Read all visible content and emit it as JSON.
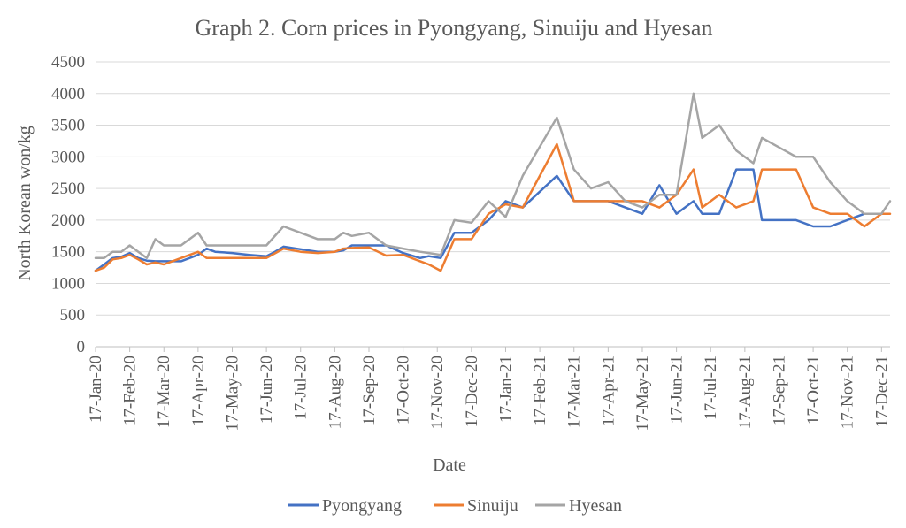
{
  "chart_data": {
    "type": "line",
    "title": "Graph 2. Corn prices in Pyongyang, Sinuiju and Hyesan",
    "xlabel": "Date",
    "ylabel": "North Korean won/kg",
    "ylim": [
      0,
      4500
    ],
    "yticks": [
      "0",
      "500",
      "1000",
      "1500",
      "2000",
      "2500",
      "3000",
      "3500",
      "4000",
      "4500"
    ],
    "grid": "horizontal",
    "legend": "bottom",
    "x": [
      "17-Jan-20",
      "17-Feb-20",
      "17-Mar-20",
      "17-Apr-20",
      "17-May-20",
      "17-Jun-20",
      "17-Jul-20",
      "17-Aug-20",
      "17-Sep-20",
      "17-Oct-20",
      "17-Nov-20",
      "17-Dec-20",
      "17-Jan-21",
      "17-Feb-21",
      "17-Mar-21",
      "17-Apr-21",
      "17-May-21",
      "17-Jun-21",
      "17-Jul-21",
      "17-Aug-21",
      "17-Sep-21",
      "17-Oct-21",
      "17-Nov-21",
      "17-Dec-21"
    ],
    "series": [
      {
        "name": "Pyongyang",
        "color": "#4472c4",
        "points": [
          [
            0,
            1200
          ],
          [
            0.25,
            1300
          ],
          [
            0.5,
            1400
          ],
          [
            0.75,
            1420
          ],
          [
            1,
            1480
          ],
          [
            1.25,
            1400
          ],
          [
            1.5,
            1360
          ],
          [
            1.75,
            1350
          ],
          [
            2,
            1350
          ],
          [
            2.25,
            1350
          ],
          [
            2.5,
            1350
          ],
          [
            3,
            1450
          ],
          [
            3.25,
            1550
          ],
          [
            3.5,
            1500
          ],
          [
            4,
            1480
          ],
          [
            4.5,
            1450
          ],
          [
            5,
            1430
          ],
          [
            5.25,
            1500
          ],
          [
            5.5,
            1580
          ],
          [
            6,
            1540
          ],
          [
            6.5,
            1500
          ],
          [
            7,
            1500
          ],
          [
            7.25,
            1520
          ],
          [
            7.5,
            1600
          ],
          [
            8,
            1600
          ],
          [
            8.5,
            1600
          ],
          [
            9,
            1480
          ],
          [
            9.5,
            1400
          ],
          [
            9.75,
            1430
          ],
          [
            10.1,
            1400
          ],
          [
            10.5,
            1800
          ],
          [
            11,
            1800
          ],
          [
            11.5,
            2000
          ],
          [
            12,
            2300
          ],
          [
            12.5,
            2200
          ],
          [
            13.5,
            2700
          ],
          [
            14,
            2300
          ],
          [
            15,
            2300
          ],
          [
            16,
            2100
          ],
          [
            16.5,
            2550
          ],
          [
            17,
            2100
          ],
          [
            17.5,
            2300
          ],
          [
            17.75,
            2100
          ],
          [
            18.25,
            2100
          ],
          [
            18.75,
            2800
          ],
          [
            19.25,
            2800
          ],
          [
            19.5,
            2000
          ],
          [
            20.5,
            2000
          ],
          [
            21,
            1900
          ],
          [
            21.5,
            1900
          ],
          [
            22.5,
            2100
          ],
          [
            23,
            2100
          ]
        ]
      },
      {
        "name": "Sinuiju",
        "color": "#ed7d31",
        "points": [
          [
            0,
            1200
          ],
          [
            0.25,
            1250
          ],
          [
            0.5,
            1380
          ],
          [
            0.75,
            1400
          ],
          [
            1,
            1450
          ],
          [
            1.25,
            1380
          ],
          [
            1.5,
            1300
          ],
          [
            1.75,
            1330
          ],
          [
            2,
            1300
          ],
          [
            2.5,
            1400
          ],
          [
            3,
            1500
          ],
          [
            3.25,
            1400
          ],
          [
            4,
            1400
          ],
          [
            4.5,
            1400
          ],
          [
            5,
            1400
          ],
          [
            5.5,
            1550
          ],
          [
            6,
            1500
          ],
          [
            6.5,
            1480
          ],
          [
            7,
            1500
          ],
          [
            7.25,
            1550
          ],
          [
            7.5,
            1560
          ],
          [
            8,
            1570
          ],
          [
            8.5,
            1440
          ],
          [
            9,
            1450
          ],
          [
            9.5,
            1350
          ],
          [
            9.75,
            1300
          ],
          [
            10.1,
            1200
          ],
          [
            10.5,
            1700
          ],
          [
            11,
            1700
          ],
          [
            11.5,
            2100
          ],
          [
            12,
            2250
          ],
          [
            12.5,
            2200
          ],
          [
            13.5,
            3200
          ],
          [
            14,
            2300
          ],
          [
            15,
            2300
          ],
          [
            16,
            2300
          ],
          [
            16.5,
            2200
          ],
          [
            17,
            2400
          ],
          [
            17.5,
            2800
          ],
          [
            17.75,
            2200
          ],
          [
            18.25,
            2400
          ],
          [
            18.75,
            2200
          ],
          [
            19.25,
            2300
          ],
          [
            19.5,
            2800
          ],
          [
            20.5,
            2800
          ],
          [
            21,
            2200
          ],
          [
            21.5,
            2100
          ],
          [
            22,
            2100
          ],
          [
            22.5,
            1900
          ],
          [
            23,
            2100
          ],
          [
            23.25,
            2100
          ]
        ]
      },
      {
        "name": "Hyesan",
        "color": "#a5a5a5",
        "points": [
          [
            0,
            1400
          ],
          [
            0.25,
            1400
          ],
          [
            0.5,
            1500
          ],
          [
            0.75,
            1500
          ],
          [
            1,
            1600
          ],
          [
            1.25,
            1500
          ],
          [
            1.5,
            1400
          ],
          [
            1.75,
            1700
          ],
          [
            2,
            1600
          ],
          [
            2.5,
            1600
          ],
          [
            3,
            1800
          ],
          [
            3.25,
            1600
          ],
          [
            4,
            1600
          ],
          [
            4.5,
            1600
          ],
          [
            5,
            1600
          ],
          [
            5.5,
            1900
          ],
          [
            6,
            1800
          ],
          [
            6.5,
            1700
          ],
          [
            7,
            1700
          ],
          [
            7.25,
            1800
          ],
          [
            7.5,
            1750
          ],
          [
            8,
            1800
          ],
          [
            8.5,
            1600
          ],
          [
            9,
            1550
          ],
          [
            9.5,
            1500
          ],
          [
            9.75,
            1480
          ],
          [
            10.1,
            1450
          ],
          [
            10.5,
            2000
          ],
          [
            11,
            1960
          ],
          [
            11.5,
            2300
          ],
          [
            12,
            2050
          ],
          [
            12.5,
            2700
          ],
          [
            13.5,
            3620
          ],
          [
            14,
            2800
          ],
          [
            14.5,
            2500
          ],
          [
            15,
            2600
          ],
          [
            15.5,
            2300
          ],
          [
            16,
            2200
          ],
          [
            16.5,
            2400
          ],
          [
            17,
            2400
          ],
          [
            17.5,
            4000
          ],
          [
            17.75,
            3300
          ],
          [
            18.25,
            3500
          ],
          [
            18.75,
            3100
          ],
          [
            19.25,
            2900
          ],
          [
            19.5,
            3300
          ],
          [
            20.5,
            3000
          ],
          [
            21,
            3000
          ],
          [
            21.5,
            2600
          ],
          [
            22,
            2300
          ],
          [
            22.5,
            2100
          ],
          [
            23,
            2100
          ],
          [
            23.25,
            2300
          ]
        ]
      }
    ]
  }
}
